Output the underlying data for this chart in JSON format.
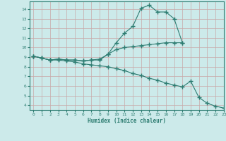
{
  "xlabel": "Humidex (Indice chaleur)",
  "bg_color": "#cceaea",
  "grid_color": "#b8d8d8",
  "line_color": "#2e7d72",
  "xlim": [
    -0.5,
    23
  ],
  "ylim": [
    3.5,
    14.8
  ],
  "yticks": [
    4,
    5,
    6,
    7,
    8,
    9,
    10,
    11,
    12,
    13,
    14
  ],
  "xticks": [
    0,
    1,
    2,
    3,
    4,
    5,
    6,
    7,
    8,
    9,
    10,
    11,
    12,
    13,
    14,
    15,
    16,
    17,
    18,
    19,
    20,
    21,
    22,
    23
  ],
  "series1_x": [
    0,
    1,
    2,
    3,
    4,
    5,
    6,
    7,
    8,
    9,
    10,
    11,
    12,
    13,
    14,
    15,
    16,
    17,
    18
  ],
  "series1_y": [
    9.1,
    8.9,
    8.7,
    8.8,
    8.7,
    8.7,
    8.6,
    8.7,
    8.7,
    9.3,
    10.5,
    11.5,
    12.2,
    14.1,
    14.4,
    13.7,
    13.7,
    13.0,
    10.5
  ],
  "series2_x": [
    0,
    1,
    2,
    3,
    4,
    5,
    6,
    7,
    8,
    9,
    10,
    11,
    12,
    13,
    14,
    15,
    16,
    17,
    18
  ],
  "series2_y": [
    9.1,
    8.9,
    8.7,
    8.8,
    8.7,
    8.7,
    8.6,
    8.7,
    8.8,
    9.3,
    9.8,
    10.0,
    10.1,
    10.2,
    10.3,
    10.4,
    10.5,
    10.5,
    10.5
  ],
  "series3_x": [
    0,
    1,
    2,
    3,
    4,
    5,
    6,
    7,
    8,
    9,
    10,
    11,
    12,
    13,
    14,
    15,
    16,
    17,
    18,
    19,
    20,
    21,
    22,
    23
  ],
  "series3_y": [
    9.1,
    8.9,
    8.7,
    8.7,
    8.6,
    8.5,
    8.3,
    8.2,
    8.1,
    8.0,
    7.8,
    7.6,
    7.3,
    7.1,
    6.8,
    6.6,
    6.3,
    6.1,
    5.9,
    6.5,
    4.8,
    4.2,
    3.9,
    3.7
  ]
}
